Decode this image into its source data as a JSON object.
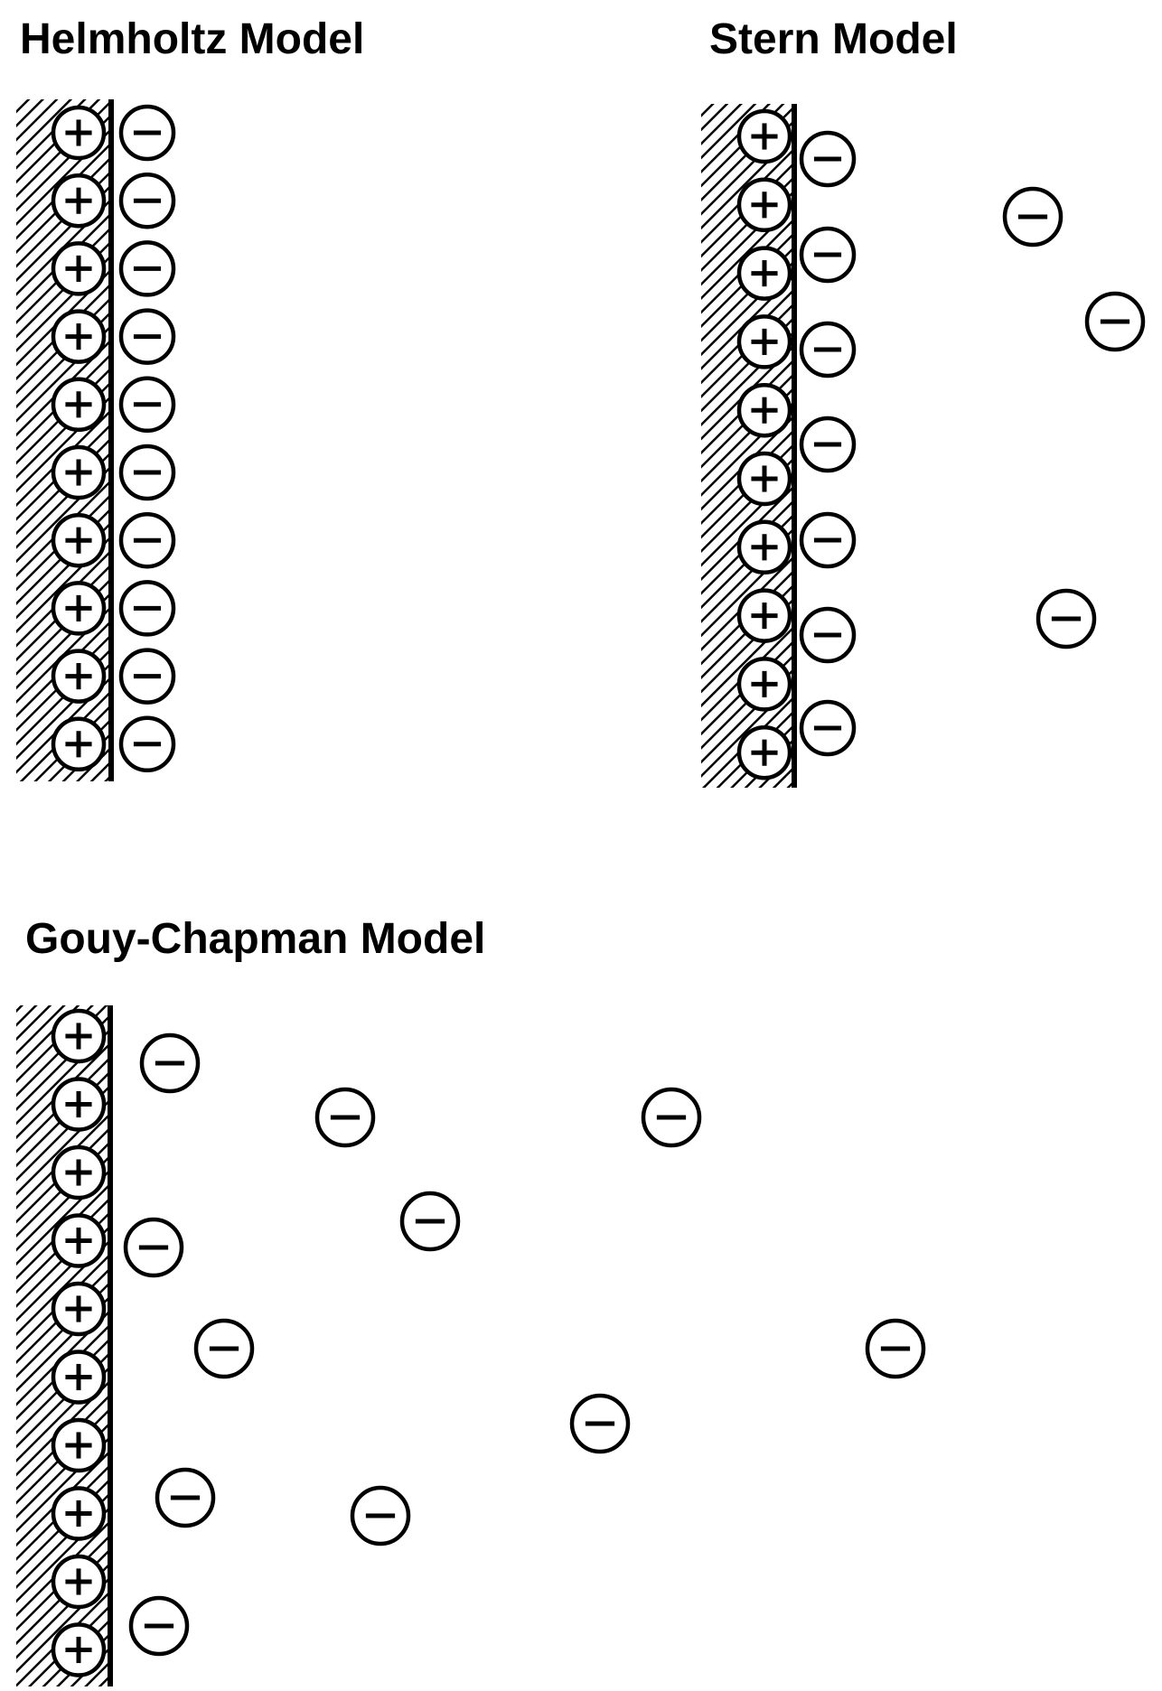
{
  "titles": {
    "helmholtz": "Helmholtz Model",
    "stern": "Stern Model",
    "gouy_chapman": "Gouy-Chapman Model"
  },
  "colors": {
    "ink": "#000000",
    "background": "#ffffff"
  },
  "icons": {
    "positive_ion": "plus-circle-icon",
    "negative_ion": "minus-circle-icon",
    "electrode": "hatched-electrode"
  }
}
